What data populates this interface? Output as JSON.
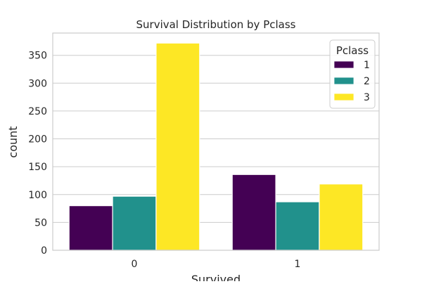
{
  "chart_data": {
    "type": "bar",
    "title": "Survival Distribution by Pclass",
    "xlabel": "Survived",
    "ylabel": "count",
    "categories": [
      "0",
      "1"
    ],
    "ylim": [
      0,
      390
    ],
    "yticks": [
      0,
      50,
      100,
      150,
      200,
      250,
      300,
      350
    ],
    "grid": "horizontal",
    "legend": {
      "title": "Pclass",
      "position": "top-right"
    },
    "series": [
      {
        "name": "1",
        "color": "#440154",
        "values": [
          80,
          136
        ]
      },
      {
        "name": "2",
        "color": "#21918c",
        "values": [
          97,
          87
        ]
      },
      {
        "name": "3",
        "color": "#fde725",
        "values": [
          372,
          119
        ]
      }
    ]
  }
}
